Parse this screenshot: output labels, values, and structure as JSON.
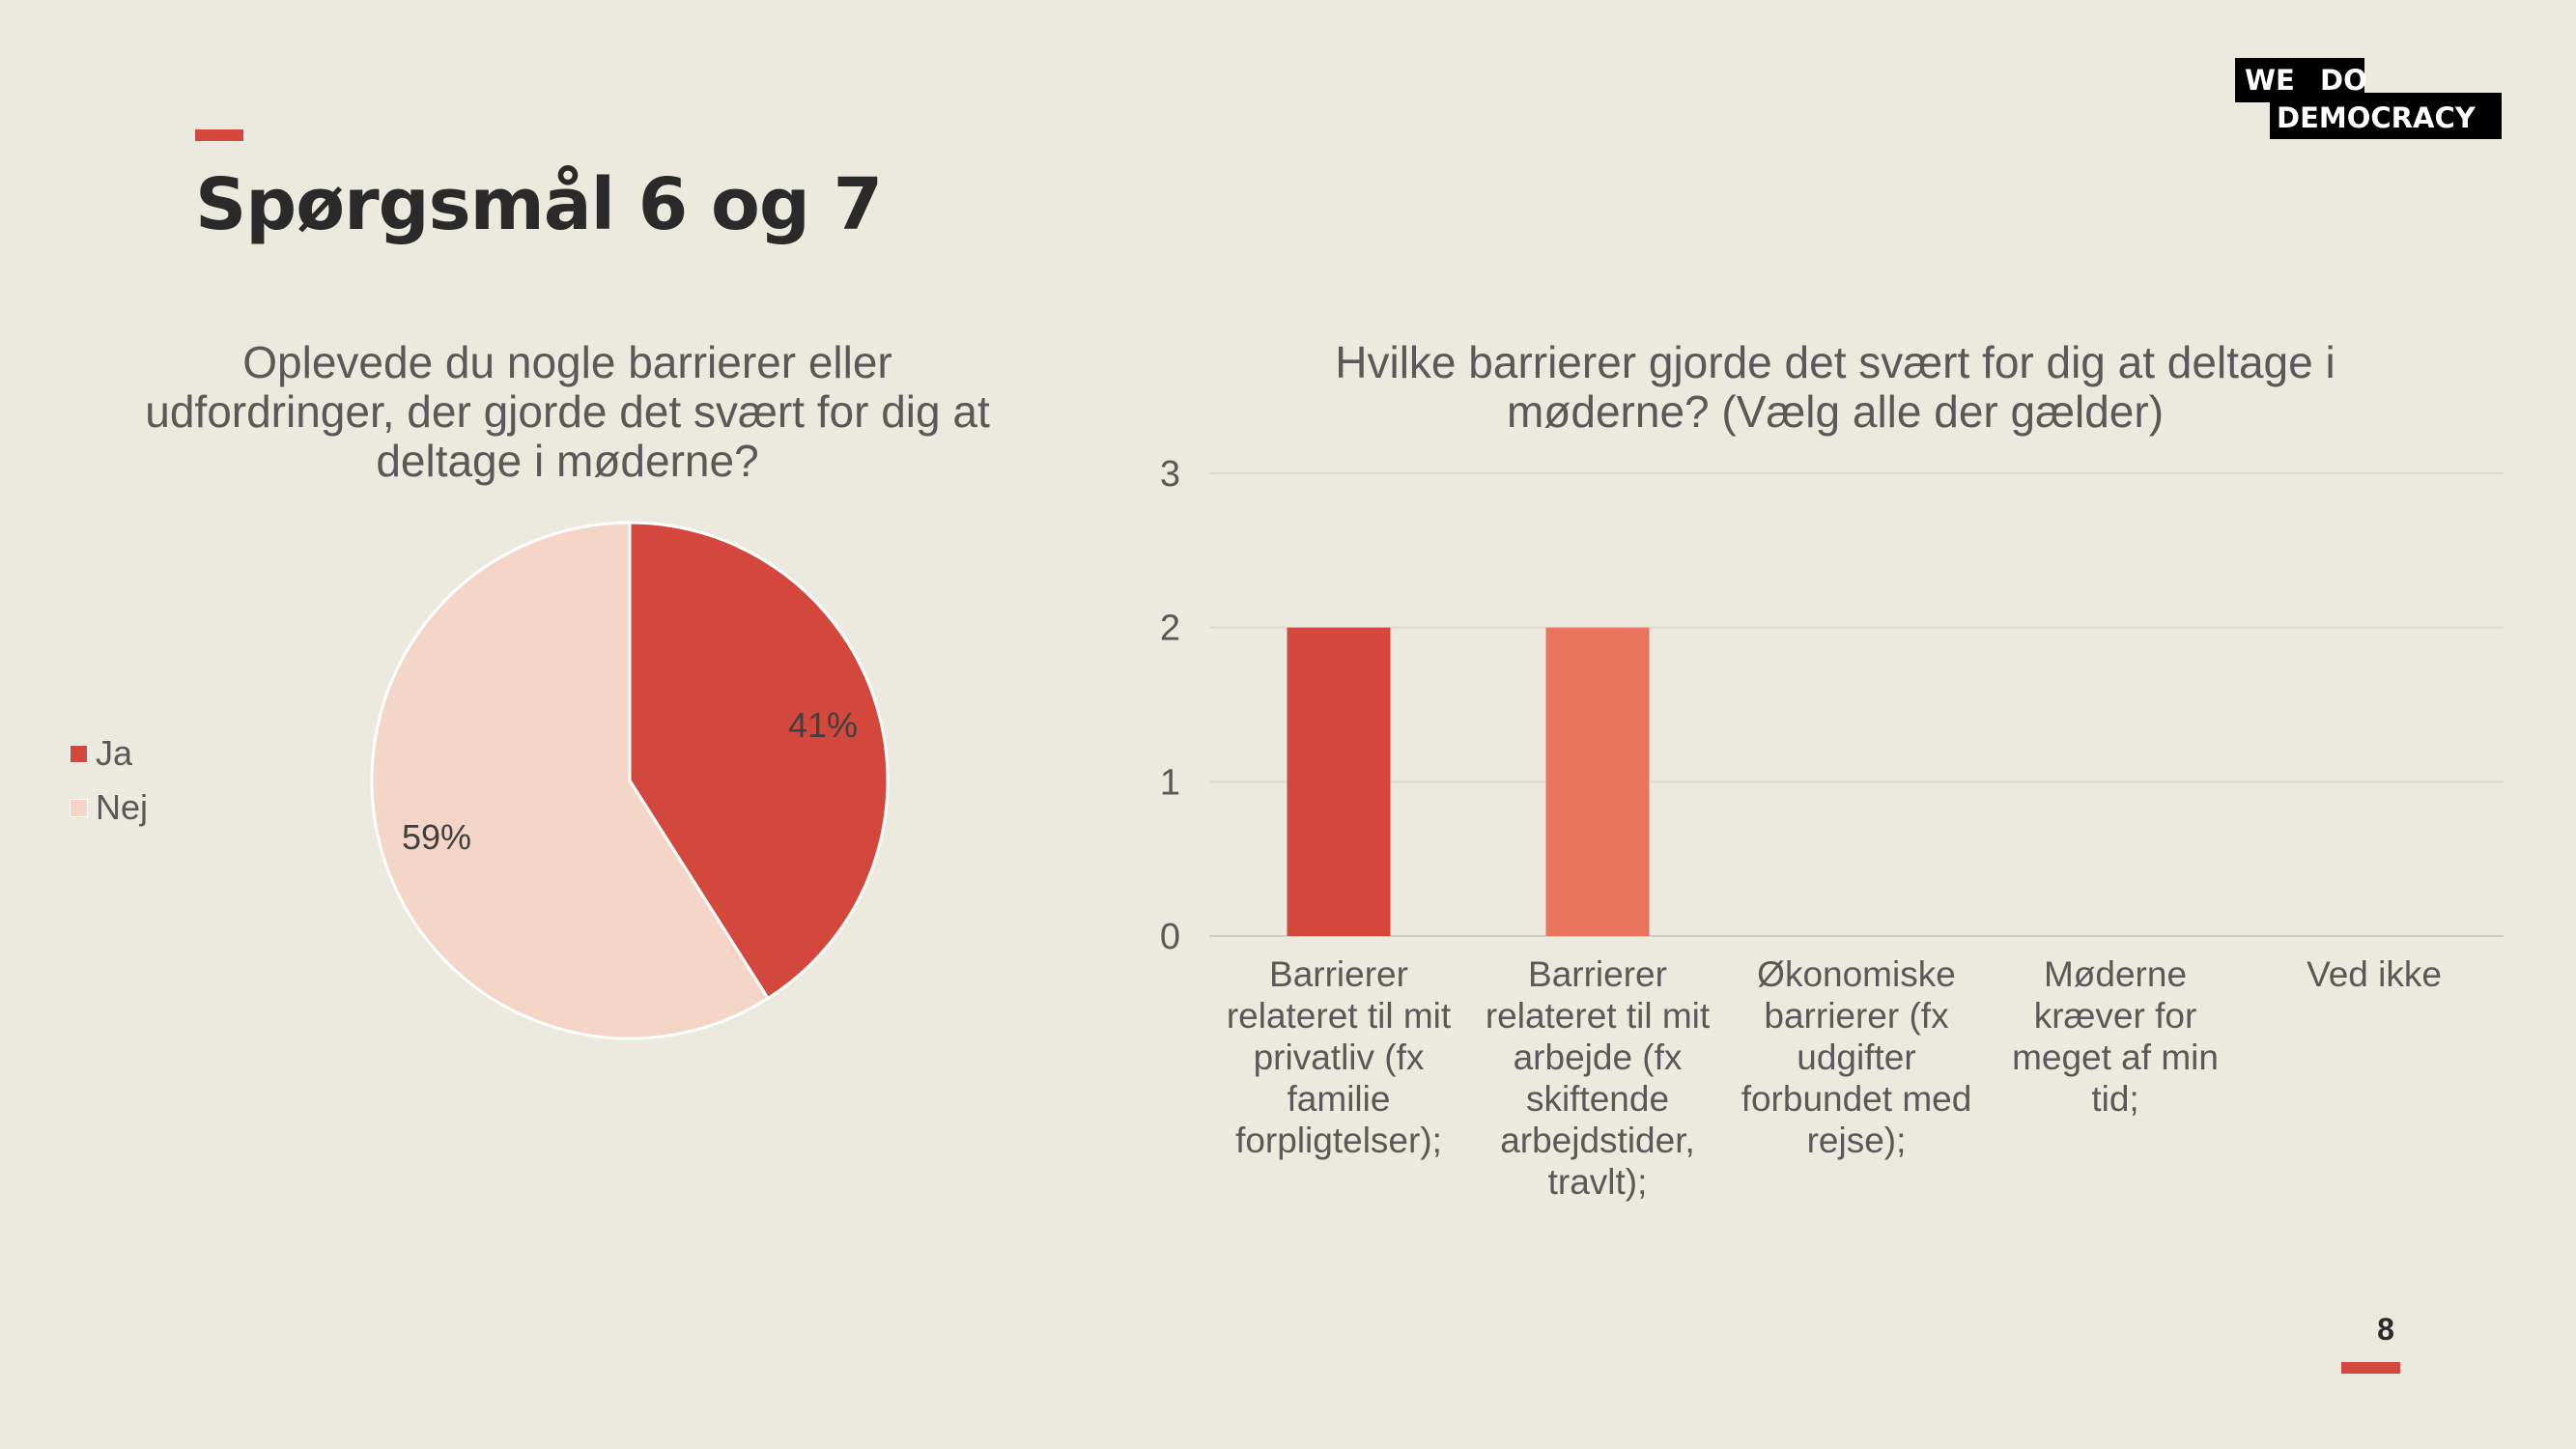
{
  "slide": {
    "title": "Spørgsmål 6 og 7",
    "page_number": "8",
    "logo": {
      "line1_left": "WE",
      "line1_right": "DO",
      "line2": "DEMOCRACY"
    },
    "colors": {
      "accent": "#D3473C",
      "background": "#ECE9DF",
      "title": "#2A2A2A"
    }
  },
  "chart_data": [
    {
      "type": "pie",
      "title": "Oplevede du nogle barrierer eller udfordringer, der gjorde det svært for dig at deltage i møderne?",
      "legend_position": "left",
      "slices": [
        {
          "label": "Ja",
          "value": 41,
          "display": "41%",
          "color": "#D3473C"
        },
        {
          "label": "Nej",
          "value": 59,
          "display": "59%",
          "color": "#F5D5C7"
        }
      ]
    },
    {
      "type": "bar",
      "title": "Hvilke barrierer gjorde det svært for dig at deltage i møderne? (Vælg alle der gælder)",
      "categories": [
        "Barrierer relateret til mit privatliv (fx familie forpligtelser);",
        "Barrierer relateret til mit arbejde (fx skiftende arbejdstider, travlt);",
        "Økonomiske barrierer (fx udgifter forbundet med rejse);",
        "Møderne kræver for meget af min tid;",
        "Ved ikke"
      ],
      "values": [
        2,
        2,
        0,
        0,
        0
      ],
      "bar_colors": [
        "#D3473C",
        "#E9755E",
        "#E9755E",
        "#E9755E",
        "#E9755E"
      ],
      "ylim": [
        0,
        3
      ],
      "yticks": [
        "0",
        "1",
        "2",
        "3"
      ],
      "grid": true,
      "legend": false
    }
  ]
}
